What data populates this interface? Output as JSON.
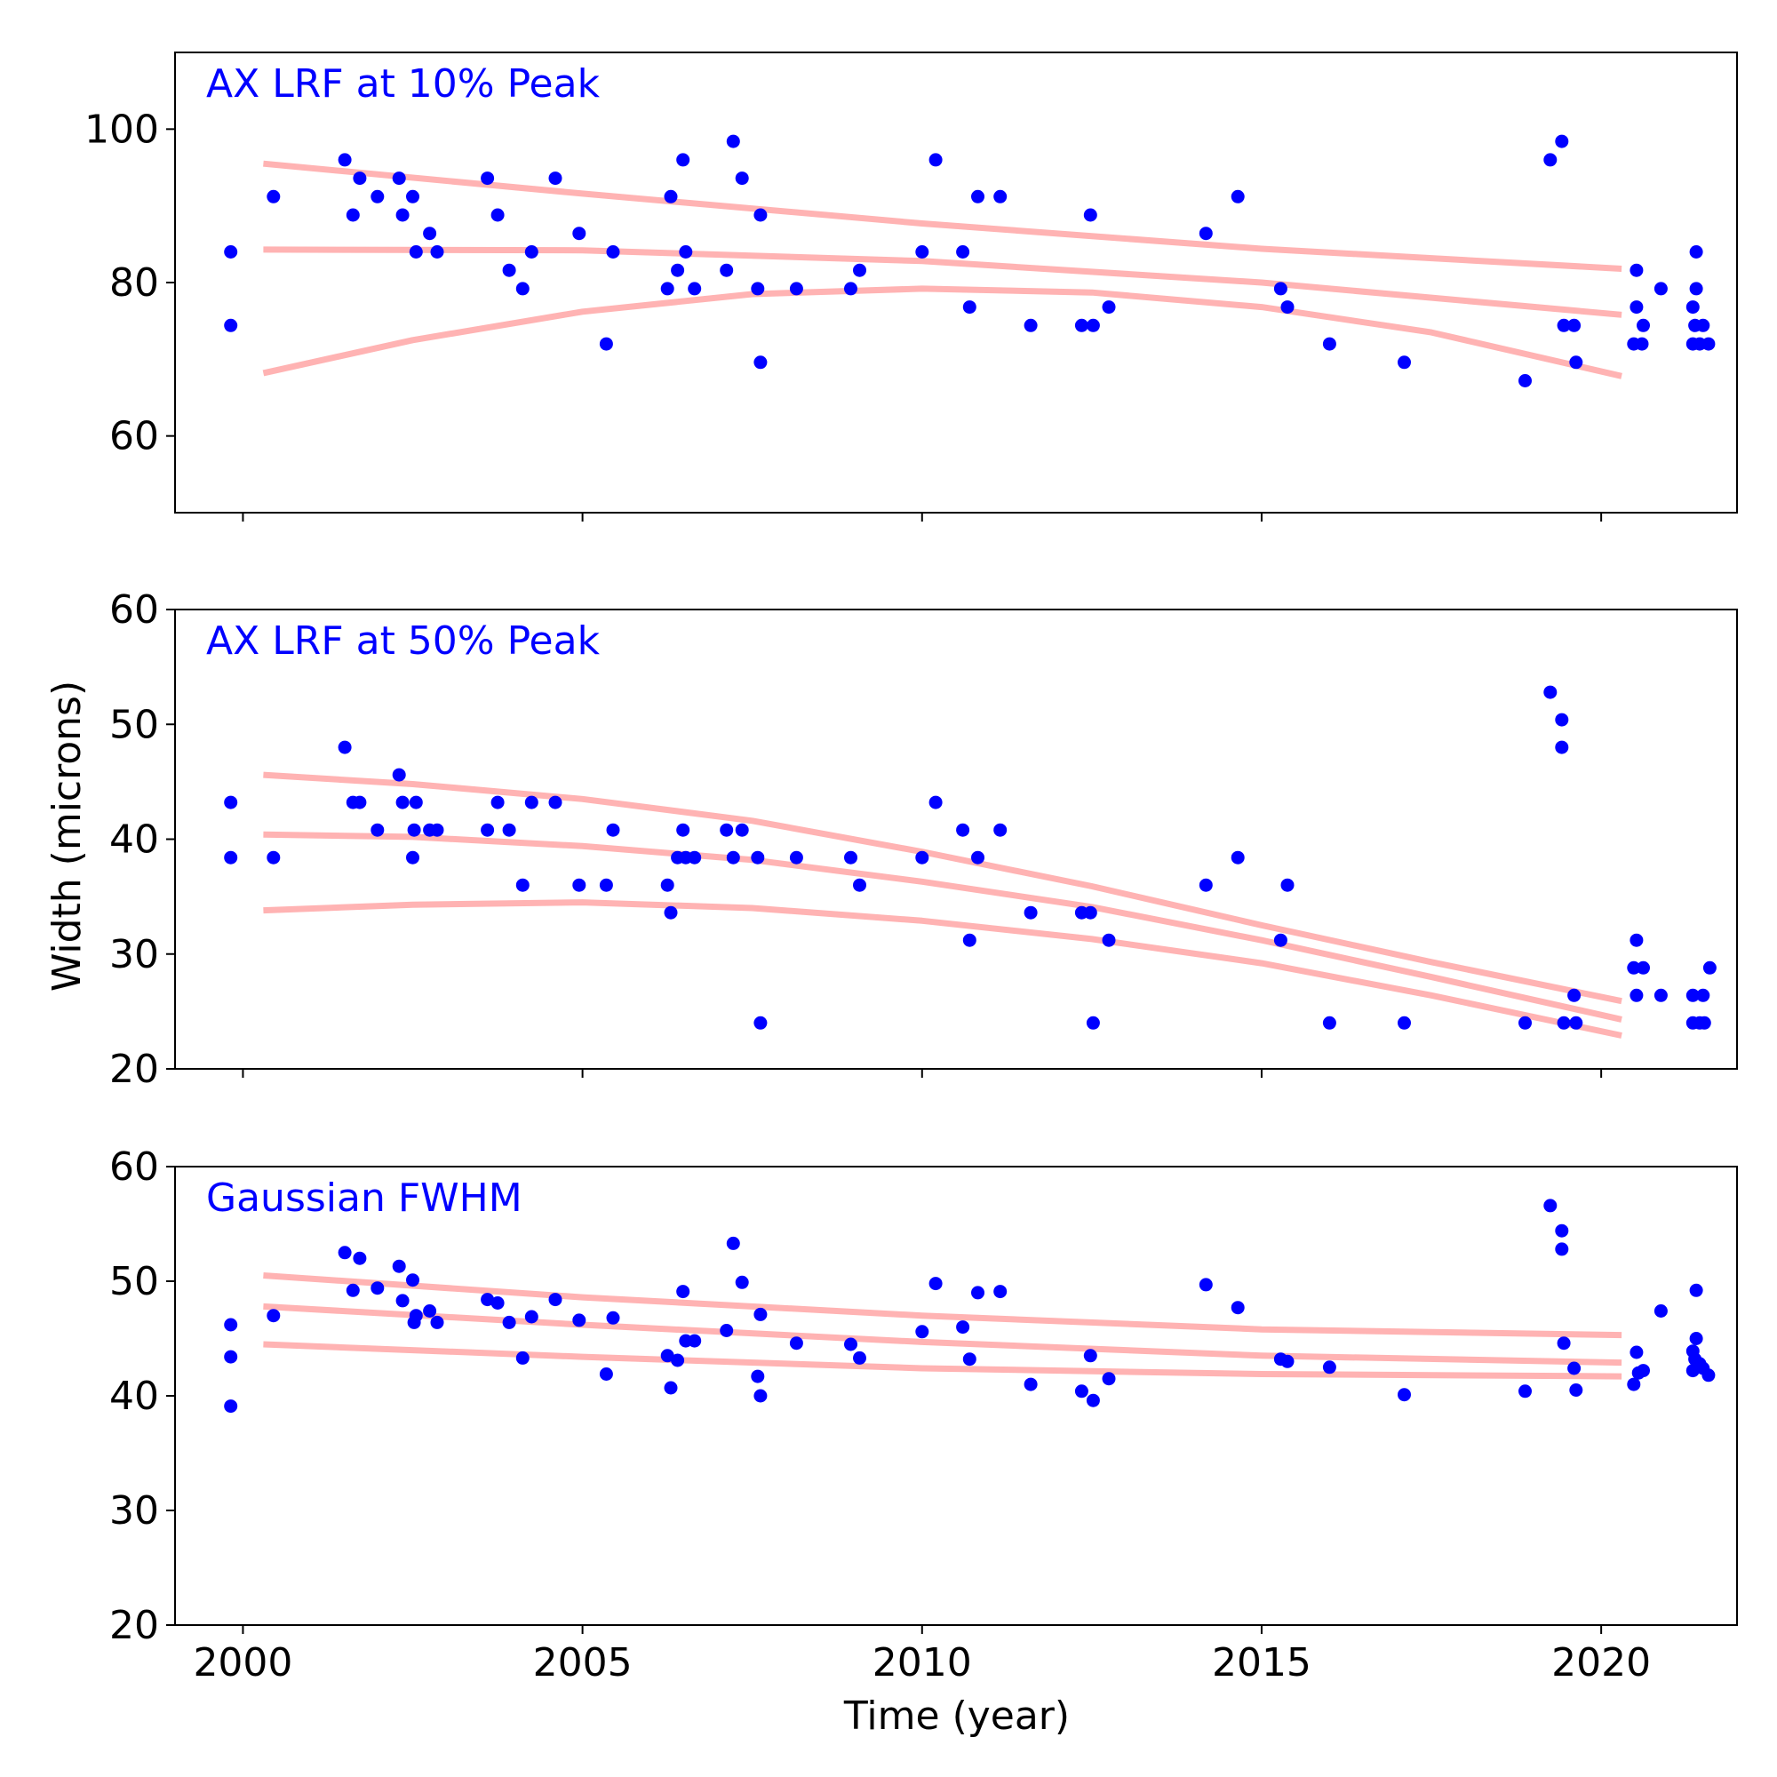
{
  "figure": {
    "xlabel": "Time (year)",
    "ylabel": "Width (microns)",
    "x_ticks": [
      2000,
      2005,
      2010,
      2015,
      2020
    ],
    "xlim": [
      1999.0,
      2022.0
    ]
  },
  "colors": {
    "points": "#0000ff",
    "fit": "#ffb3b3",
    "title": "#0000ff",
    "axis": "#000000"
  },
  "chart_data": [
    {
      "type": "scatter",
      "title": "AX LRF at 10% Peak",
      "xlabel": "",
      "ylabel": "",
      "ylim": [
        50,
        110
      ],
      "y_ticks": [
        60,
        80,
        100
      ],
      "grid": false,
      "points": [
        [
          1999.82,
          84.0
        ],
        [
          1999.82,
          74.4
        ],
        [
          2000.45,
          91.2
        ],
        [
          2001.5,
          96.0
        ],
        [
          2001.62,
          88.8
        ],
        [
          2001.72,
          93.6
        ],
        [
          2001.98,
          91.2
        ],
        [
          2002.3,
          93.6
        ],
        [
          2002.35,
          88.8
        ],
        [
          2002.5,
          91.2
        ],
        [
          2002.55,
          84.0
        ],
        [
          2002.75,
          86.4
        ],
        [
          2002.86,
          84.0
        ],
        [
          2003.6,
          93.6
        ],
        [
          2003.75,
          88.8
        ],
        [
          2003.92,
          81.6
        ],
        [
          2004.12,
          79.2
        ],
        [
          2004.25,
          84.0
        ],
        [
          2004.6,
          93.6
        ],
        [
          2004.95,
          86.4
        ],
        [
          2005.35,
          72.0
        ],
        [
          2005.45,
          84.0
        ],
        [
          2006.25,
          79.2
        ],
        [
          2006.3,
          91.2
        ],
        [
          2006.4,
          81.6
        ],
        [
          2006.48,
          96.0
        ],
        [
          2006.52,
          84.0
        ],
        [
          2006.65,
          79.2
        ],
        [
          2007.12,
          81.6
        ],
        [
          2007.22,
          98.4
        ],
        [
          2007.35,
          93.6
        ],
        [
          2007.58,
          79.2
        ],
        [
          2007.62,
          88.8
        ],
        [
          2007.62,
          69.6
        ],
        [
          2008.15,
          79.2
        ],
        [
          2008.95,
          79.2
        ],
        [
          2009.08,
          81.6
        ],
        [
          2010.0,
          84.0
        ],
        [
          2010.2,
          96.0
        ],
        [
          2010.6,
          84.0
        ],
        [
          2010.7,
          76.8
        ],
        [
          2010.82,
          91.2
        ],
        [
          2011.15,
          91.2
        ],
        [
          2011.6,
          74.4
        ],
        [
          2012.35,
          74.4
        ],
        [
          2012.48,
          88.8
        ],
        [
          2012.52,
          74.4
        ],
        [
          2012.75,
          76.8
        ],
        [
          2014.18,
          86.4
        ],
        [
          2014.65,
          91.2
        ],
        [
          2015.28,
          79.2
        ],
        [
          2015.38,
          76.8
        ],
        [
          2016.0,
          72.0
        ],
        [
          2017.1,
          69.6
        ],
        [
          2018.88,
          67.2
        ],
        [
          2019.25,
          96.0
        ],
        [
          2019.42,
          98.4
        ],
        [
          2019.45,
          74.4
        ],
        [
          2019.6,
          74.4
        ],
        [
          2019.63,
          69.6
        ],
        [
          2020.48,
          72.0
        ],
        [
          2020.52,
          81.6
        ],
        [
          2020.52,
          76.8
        ],
        [
          2020.6,
          72.0
        ],
        [
          2020.62,
          74.4
        ],
        [
          2020.88,
          79.2
        ],
        [
          2021.35,
          72.0
        ],
        [
          2021.35,
          76.8
        ],
        [
          2021.38,
          74.4
        ],
        [
          2021.4,
          84.0
        ],
        [
          2021.4,
          79.2
        ],
        [
          2021.45,
          72.0
        ],
        [
          2021.5,
          74.4
        ],
        [
          2021.58,
          72.0
        ]
      ],
      "fit_lines": [
        {
          "x": [
            2000.3,
            2005,
            2010,
            2015,
            2020.3
          ],
          "y": [
            95.5,
            91.6,
            87.7,
            84.4,
            81.8
          ]
        },
        {
          "x": [
            2000.3,
            2005,
            2010,
            2015,
            2020.3
          ],
          "y": [
            84.3,
            84.2,
            82.8,
            80.0,
            75.8
          ]
        },
        {
          "x": [
            2000.3,
            2002.5,
            2005,
            2007.5,
            2010,
            2012.5,
            2015,
            2017.5,
            2020.3
          ],
          "y": [
            68.2,
            72.5,
            76.2,
            78.5,
            79.2,
            78.7,
            76.8,
            73.5,
            67.8
          ]
        }
      ]
    },
    {
      "type": "scatter",
      "title": "AX LRF at 50% Peak",
      "xlabel": "",
      "ylabel": "",
      "ylim": [
        20,
        60
      ],
      "y_ticks": [
        20,
        30,
        40,
        50,
        60
      ],
      "grid": false,
      "points": [
        [
          1999.82,
          43.2
        ],
        [
          1999.82,
          38.4
        ],
        [
          2000.45,
          38.4
        ],
        [
          2001.5,
          48.0
        ],
        [
          2001.62,
          43.2
        ],
        [
          2001.72,
          43.2
        ],
        [
          2001.98,
          40.8
        ],
        [
          2002.3,
          45.6
        ],
        [
          2002.35,
          43.2
        ],
        [
          2002.5,
          38.4
        ],
        [
          2002.52,
          40.8
        ],
        [
          2002.55,
          43.2
        ],
        [
          2002.75,
          40.8
        ],
        [
          2002.86,
          40.8
        ],
        [
          2003.6,
          40.8
        ],
        [
          2003.75,
          43.2
        ],
        [
          2003.92,
          40.8
        ],
        [
          2004.12,
          36.0
        ],
        [
          2004.25,
          43.2
        ],
        [
          2004.6,
          43.2
        ],
        [
          2004.95,
          36.0
        ],
        [
          2005.35,
          36.0
        ],
        [
          2005.45,
          40.8
        ],
        [
          2006.25,
          36.0
        ],
        [
          2006.3,
          33.6
        ],
        [
          2006.4,
          38.4
        ],
        [
          2006.48,
          40.8
        ],
        [
          2006.52,
          38.4
        ],
        [
          2006.65,
          38.4
        ],
        [
          2007.12,
          40.8
        ],
        [
          2007.22,
          38.4
        ],
        [
          2007.35,
          40.8
        ],
        [
          2007.58,
          38.4
        ],
        [
          2007.62,
          24.0
        ],
        [
          2008.15,
          38.4
        ],
        [
          2008.95,
          38.4
        ],
        [
          2009.08,
          36.0
        ],
        [
          2010.0,
          38.4
        ],
        [
          2010.2,
          43.2
        ],
        [
          2010.6,
          40.8
        ],
        [
          2010.7,
          31.2
        ],
        [
          2010.82,
          38.4
        ],
        [
          2011.15,
          40.8
        ],
        [
          2011.6,
          33.6
        ],
        [
          2012.35,
          33.6
        ],
        [
          2012.48,
          33.6
        ],
        [
          2012.52,
          24.0
        ],
        [
          2012.75,
          31.2
        ],
        [
          2014.18,
          36.0
        ],
        [
          2014.65,
          38.4
        ],
        [
          2015.28,
          31.2
        ],
        [
          2015.38,
          36.0
        ],
        [
          2016.0,
          24.0
        ],
        [
          2017.1,
          24.0
        ],
        [
          2018.88,
          24.0
        ],
        [
          2019.25,
          52.8
        ],
        [
          2019.42,
          50.4
        ],
        [
          2019.42,
          48.0
        ],
        [
          2019.45,
          24.0
        ],
        [
          2019.6,
          26.4
        ],
        [
          2019.63,
          24.0
        ],
        [
          2020.48,
          28.8
        ],
        [
          2020.52,
          31.2
        ],
        [
          2020.52,
          26.4
        ],
        [
          2020.62,
          28.8
        ],
        [
          2020.88,
          26.4
        ],
        [
          2021.35,
          26.4
        ],
        [
          2021.35,
          24.0
        ],
        [
          2021.45,
          24.0
        ],
        [
          2021.5,
          26.4
        ],
        [
          2021.52,
          24.0
        ],
        [
          2021.6,
          28.8
        ]
      ],
      "fit_lines": [
        {
          "x": [
            2000.3,
            2002.5,
            2005,
            2007.5,
            2010,
            2012.5,
            2015,
            2017.5,
            2020.3
          ],
          "y": [
            45.6,
            44.8,
            43.5,
            41.6,
            38.9,
            35.9,
            32.5,
            29.3,
            25.9
          ]
        },
        {
          "x": [
            2000.3,
            2002.5,
            2005,
            2007.5,
            2010,
            2012.5,
            2015,
            2017.5,
            2020.3
          ],
          "y": [
            40.4,
            40.2,
            39.4,
            38.2,
            36.3,
            34.1,
            31.2,
            28.0,
            24.3
          ]
        },
        {
          "x": [
            2000.3,
            2002.5,
            2005,
            2007.5,
            2010,
            2012.5,
            2015,
            2017.5,
            2020.3
          ],
          "y": [
            33.8,
            34.3,
            34.5,
            34.0,
            32.9,
            31.3,
            29.2,
            26.4,
            22.9
          ]
        }
      ]
    },
    {
      "type": "scatter",
      "title": "Gaussian FWHM",
      "xlabel": "",
      "ylabel": "",
      "ylim": [
        20,
        60
      ],
      "y_ticks": [
        20,
        30,
        40,
        50,
        60
      ],
      "grid": false,
      "points": [
        [
          1999.82,
          46.2
        ],
        [
          1999.82,
          43.4
        ],
        [
          1999.82,
          39.1
        ],
        [
          2000.45,
          47.0
        ],
        [
          2001.5,
          52.5
        ],
        [
          2001.62,
          49.2
        ],
        [
          2001.72,
          52.0
        ],
        [
          2001.98,
          49.4
        ],
        [
          2002.3,
          51.3
        ],
        [
          2002.35,
          48.3
        ],
        [
          2002.5,
          50.1
        ],
        [
          2002.52,
          46.4
        ],
        [
          2002.55,
          47.0
        ],
        [
          2002.75,
          47.4
        ],
        [
          2002.86,
          46.4
        ],
        [
          2003.6,
          48.4
        ],
        [
          2003.75,
          48.1
        ],
        [
          2003.92,
          46.4
        ],
        [
          2004.12,
          43.3
        ],
        [
          2004.25,
          46.9
        ],
        [
          2004.6,
          48.4
        ],
        [
          2004.95,
          46.6
        ],
        [
          2005.35,
          41.9
        ],
        [
          2005.45,
          46.8
        ],
        [
          2006.25,
          43.5
        ],
        [
          2006.3,
          40.7
        ],
        [
          2006.4,
          43.1
        ],
        [
          2006.48,
          49.1
        ],
        [
          2006.52,
          44.8
        ],
        [
          2006.65,
          44.8
        ],
        [
          2007.12,
          45.7
        ],
        [
          2007.22,
          53.3
        ],
        [
          2007.35,
          49.9
        ],
        [
          2007.58,
          41.7
        ],
        [
          2007.62,
          47.1
        ],
        [
          2007.62,
          40.0
        ],
        [
          2008.15,
          44.6
        ],
        [
          2008.95,
          44.5
        ],
        [
          2009.08,
          43.3
        ],
        [
          2010.0,
          45.6
        ],
        [
          2010.2,
          49.8
        ],
        [
          2010.6,
          46.0
        ],
        [
          2010.7,
          43.2
        ],
        [
          2010.82,
          49.0
        ],
        [
          2011.15,
          49.1
        ],
        [
          2011.6,
          41.0
        ],
        [
          2012.35,
          40.4
        ],
        [
          2012.48,
          43.5
        ],
        [
          2012.52,
          39.6
        ],
        [
          2012.75,
          41.5
        ],
        [
          2014.18,
          49.7
        ],
        [
          2014.65,
          47.7
        ],
        [
          2015.28,
          43.2
        ],
        [
          2015.38,
          43.0
        ],
        [
          2016.0,
          42.5
        ],
        [
          2017.1,
          40.1
        ],
        [
          2018.88,
          40.4
        ],
        [
          2019.25,
          56.6
        ],
        [
          2019.42,
          54.4
        ],
        [
          2019.42,
          52.8
        ],
        [
          2019.45,
          44.6
        ],
        [
          2019.6,
          42.4
        ],
        [
          2019.63,
          40.5
        ],
        [
          2020.48,
          41.0
        ],
        [
          2020.52,
          43.8
        ],
        [
          2020.55,
          42.0
        ],
        [
          2020.62,
          42.2
        ],
        [
          2020.88,
          47.4
        ],
        [
          2021.35,
          42.2
        ],
        [
          2021.35,
          43.9
        ],
        [
          2021.38,
          43.2
        ],
        [
          2021.4,
          49.2
        ],
        [
          2021.4,
          45.0
        ],
        [
          2021.45,
          42.8
        ],
        [
          2021.5,
          42.4
        ],
        [
          2021.58,
          41.8
        ]
      ],
      "fit_lines": [
        {
          "x": [
            2000.3,
            2005,
            2010,
            2015,
            2020.3
          ],
          "y": [
            50.5,
            48.6,
            47.0,
            45.8,
            45.3
          ]
        },
        {
          "x": [
            2000.3,
            2005,
            2010,
            2015,
            2020.3
          ],
          "y": [
            47.8,
            46.2,
            44.7,
            43.5,
            42.9
          ]
        },
        {
          "x": [
            2000.3,
            2005,
            2010,
            2015,
            2020.3
          ],
          "y": [
            44.5,
            43.4,
            42.4,
            41.9,
            41.7
          ]
        }
      ]
    }
  ]
}
